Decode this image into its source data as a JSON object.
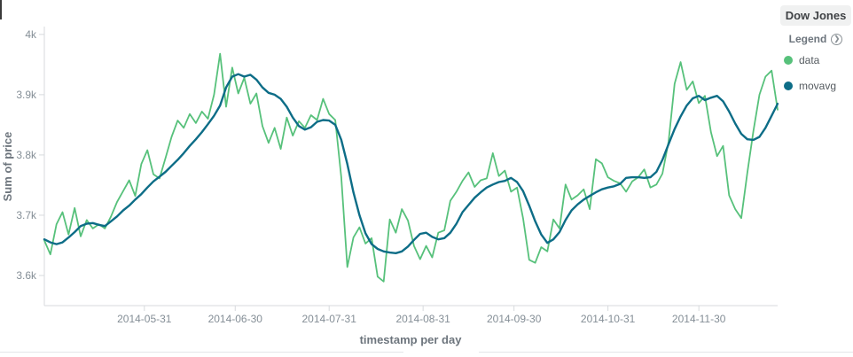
{
  "panel": {
    "title": "Dow Jones"
  },
  "legend": {
    "header": "Legend",
    "items": [
      {
        "label": "data",
        "color": "#57c17b"
      },
      {
        "label": "movavg",
        "color": "#0d6d87"
      }
    ]
  },
  "chart_data": {
    "type": "line",
    "title": "Dow Jones",
    "xlabel": "timestamp per day",
    "ylabel": "Sum of price",
    "unit": "k (thousands of price units)",
    "x_start_date": "2014-04-28",
    "x_end_date": "2014-12-26",
    "x_step_days": 2,
    "grid": false,
    "legend_position": "right",
    "ylim": [
      3.55,
      4.013
    ],
    "yticks": [
      {
        "label": "4k",
        "v": 4.0
      },
      {
        "label": "3.9k",
        "v": 3.9
      },
      {
        "label": "3.8k",
        "v": 3.8
      },
      {
        "label": "3.7k",
        "v": 3.7
      },
      {
        "label": "3.6k",
        "v": 3.6
      }
    ],
    "xticks": [
      {
        "label": "2014-05-31",
        "t": 0.1364
      },
      {
        "label": "2014-06-30",
        "t": 0.2603
      },
      {
        "label": "2014-07-31",
        "t": 0.3884
      },
      {
        "label": "2014-08-31",
        "t": 0.5165
      },
      {
        "label": "2014-09-30",
        "t": 0.6405
      },
      {
        "label": "2014-10-31",
        "t": 0.7686
      },
      {
        "label": "2014-11-30",
        "t": 0.8926
      }
    ],
    "series": [
      {
        "name": "data",
        "color": "#57c17b",
        "values": [
          3.658,
          3.635,
          3.685,
          3.705,
          3.668,
          3.712,
          3.665,
          3.692,
          3.678,
          3.685,
          3.678,
          3.698,
          3.722,
          3.74,
          3.758,
          3.732,
          3.785,
          3.808,
          3.768,
          3.761,
          3.795,
          3.83,
          3.857,
          3.845,
          3.868,
          3.853,
          3.872,
          3.86,
          3.9,
          3.968,
          3.88,
          3.945,
          3.902,
          3.928,
          3.885,
          3.902,
          3.848,
          3.82,
          3.845,
          3.81,
          3.862,
          3.832,
          3.856,
          3.845,
          3.866,
          3.858,
          3.893,
          3.868,
          3.858,
          3.763,
          3.614,
          3.663,
          3.68,
          3.653,
          3.662,
          3.598,
          3.59,
          3.693,
          3.671,
          3.71,
          3.691,
          3.649,
          3.627,
          3.649,
          3.63,
          3.671,
          3.675,
          3.724,
          3.739,
          3.757,
          3.771,
          3.747,
          3.758,
          3.761,
          3.803,
          3.765,
          3.774,
          3.739,
          3.746,
          3.695,
          3.626,
          3.621,
          3.647,
          3.64,
          3.693,
          3.678,
          3.751,
          3.726,
          3.733,
          3.743,
          3.71,
          3.793,
          3.786,
          3.763,
          3.757,
          3.753,
          3.739,
          3.756,
          3.763,
          3.776,
          3.746,
          3.751,
          3.769,
          3.822,
          3.918,
          3.954,
          3.908,
          3.922,
          3.886,
          3.898,
          3.838,
          3.798,
          3.815,
          3.733,
          3.71,
          3.695,
          3.77,
          3.84,
          3.9,
          3.93,
          3.94,
          3.875
        ]
      },
      {
        "name": "movavg",
        "color": "#0d6d87",
        "values": [
          3.66,
          3.655,
          3.652,
          3.655,
          3.663,
          3.672,
          3.682,
          3.686,
          3.687,
          3.684,
          3.682,
          3.69,
          3.698,
          3.708,
          3.716,
          3.726,
          3.735,
          3.746,
          3.756,
          3.764,
          3.772,
          3.782,
          3.792,
          3.803,
          3.815,
          3.826,
          3.838,
          3.851,
          3.865,
          3.882,
          3.912,
          3.93,
          3.934,
          3.93,
          3.933,
          3.925,
          3.912,
          3.903,
          3.9,
          3.893,
          3.88,
          3.862,
          3.848,
          3.842,
          3.846,
          3.855,
          3.858,
          3.857,
          3.85,
          3.825,
          3.785,
          3.738,
          3.7,
          3.67,
          3.652,
          3.644,
          3.64,
          3.638,
          3.637,
          3.64,
          3.648,
          3.659,
          3.669,
          3.671,
          3.664,
          3.66,
          3.662,
          3.671,
          3.686,
          3.705,
          3.717,
          3.729,
          3.738,
          3.746,
          3.751,
          3.755,
          3.757,
          3.762,
          3.755,
          3.74,
          3.716,
          3.69,
          3.668,
          3.654,
          3.66,
          3.672,
          3.692,
          3.708,
          3.718,
          3.726,
          3.732,
          3.738,
          3.743,
          3.746,
          3.748,
          3.752,
          3.762,
          3.763,
          3.763,
          3.762,
          3.763,
          3.772,
          3.792,
          3.818,
          3.843,
          3.864,
          3.882,
          3.894,
          3.898,
          3.891,
          3.895,
          3.898,
          3.889,
          3.872,
          3.852,
          3.835,
          3.826,
          3.825,
          3.83,
          3.845,
          3.865,
          3.885
        ]
      }
    ]
  }
}
